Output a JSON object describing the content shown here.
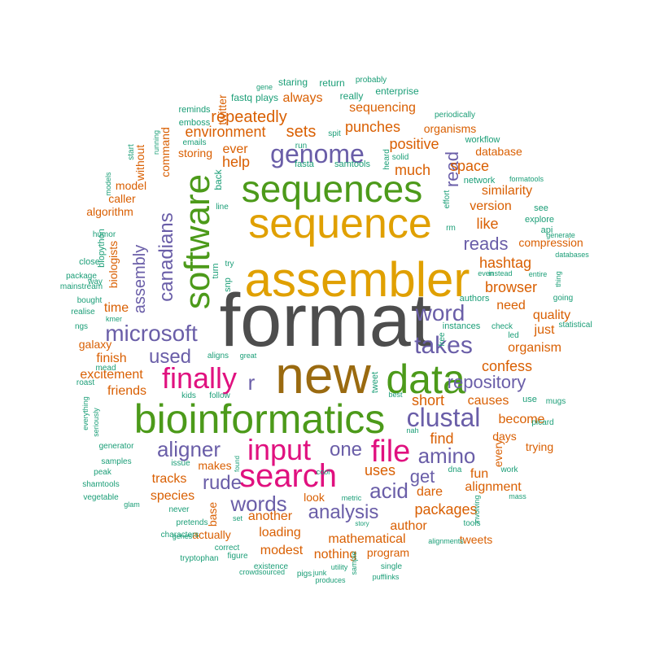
{
  "palette": {
    "dark_gray": "#4d4d4d",
    "gold": "#e0a000",
    "green": "#4c9a1a",
    "brown": "#9a6a10",
    "magenta": "#e0117f",
    "purple": "#6a5ea8",
    "orange": "#d95f02",
    "teal": "#1b9e77"
  },
  "words": [
    {
      "text": "format",
      "color": "dark_gray"
    },
    {
      "text": "new",
      "color": "brown"
    },
    {
      "text": "assembler",
      "color": "gold"
    },
    {
      "text": "sequence",
      "color": "gold"
    },
    {
      "text": "bioinformatics",
      "color": "green"
    },
    {
      "text": "sequences",
      "color": "green"
    },
    {
      "text": "data",
      "color": "green"
    },
    {
      "text": "software",
      "color": "green"
    },
    {
      "text": "search",
      "color": "magenta"
    },
    {
      "text": "input",
      "color": "magenta"
    },
    {
      "text": "file",
      "color": "magenta"
    },
    {
      "text": "finally",
      "color": "magenta"
    },
    {
      "text": "microsoft",
      "color": "purple"
    },
    {
      "text": "genome",
      "color": "purple"
    },
    {
      "text": "clustal",
      "color": "purple"
    },
    {
      "text": "takes",
      "color": "purple"
    },
    {
      "text": "word",
      "color": "purple"
    },
    {
      "text": "aligner",
      "color": "purple"
    },
    {
      "text": "words",
      "color": "purple"
    },
    {
      "text": "acid",
      "color": "purple"
    },
    {
      "text": "amino",
      "color": "purple"
    },
    {
      "text": "one",
      "color": "purple"
    },
    {
      "text": "rude",
      "color": "purple"
    },
    {
      "text": "canadians",
      "color": "purple"
    },
    {
      "text": "assembly",
      "color": "purple"
    },
    {
      "text": "repository",
      "color": "purple"
    },
    {
      "text": "analysis",
      "color": "purple"
    },
    {
      "text": "used",
      "color": "purple"
    },
    {
      "text": "reads",
      "color": "purple"
    },
    {
      "text": "read",
      "color": "purple"
    },
    {
      "text": "r",
      "color": "purple"
    },
    {
      "text": "get",
      "color": "purple"
    },
    {
      "text": "repeatedly",
      "color": "orange"
    },
    {
      "text": "sets",
      "color": "orange"
    },
    {
      "text": "punches",
      "color": "orange"
    },
    {
      "text": "environment",
      "color": "orange"
    },
    {
      "text": "positive",
      "color": "orange"
    },
    {
      "text": "much",
      "color": "orange"
    },
    {
      "text": "help",
      "color": "orange"
    },
    {
      "text": "ever",
      "color": "orange"
    },
    {
      "text": "like",
      "color": "orange"
    },
    {
      "text": "space",
      "color": "orange"
    },
    {
      "text": "similarity",
      "color": "orange"
    },
    {
      "text": "version",
      "color": "orange"
    },
    {
      "text": "hashtag",
      "color": "orange"
    },
    {
      "text": "browser",
      "color": "orange"
    },
    {
      "text": "need",
      "color": "orange"
    },
    {
      "text": "quality",
      "color": "orange"
    },
    {
      "text": "just",
      "color": "orange"
    },
    {
      "text": "organism",
      "color": "orange"
    },
    {
      "text": "confess",
      "color": "orange"
    },
    {
      "text": "excitement",
      "color": "orange"
    },
    {
      "text": "friends",
      "color": "orange"
    },
    {
      "text": "finish",
      "color": "orange"
    },
    {
      "text": "time",
      "color": "orange"
    },
    {
      "text": "short",
      "color": "orange"
    },
    {
      "text": "causes",
      "color": "orange"
    },
    {
      "text": "find",
      "color": "orange"
    },
    {
      "text": "become",
      "color": "orange"
    },
    {
      "text": "days",
      "color": "orange"
    },
    {
      "text": "every",
      "color": "orange"
    },
    {
      "text": "trying",
      "color": "orange"
    },
    {
      "text": "fun",
      "color": "orange"
    },
    {
      "text": "alignment",
      "color": "orange"
    },
    {
      "text": "uses",
      "color": "orange"
    },
    {
      "text": "dare",
      "color": "orange"
    },
    {
      "text": "packages",
      "color": "orange"
    },
    {
      "text": "author",
      "color": "orange"
    },
    {
      "text": "mathematical",
      "color": "orange"
    },
    {
      "text": "loading",
      "color": "orange"
    },
    {
      "text": "another",
      "color": "orange"
    },
    {
      "text": "modest",
      "color": "orange"
    },
    {
      "text": "nothing",
      "color": "orange"
    },
    {
      "text": "program",
      "color": "orange"
    },
    {
      "text": "tracks",
      "color": "orange"
    },
    {
      "text": "species",
      "color": "orange"
    },
    {
      "text": "actually",
      "color": "orange"
    },
    {
      "text": "base",
      "color": "orange"
    },
    {
      "text": "sequencing",
      "color": "orange"
    },
    {
      "text": "always",
      "color": "orange"
    },
    {
      "text": "organisms",
      "color": "orange"
    },
    {
      "text": "biologists",
      "color": "orange"
    },
    {
      "text": "algorithm",
      "color": "orange"
    },
    {
      "text": "model",
      "color": "orange"
    },
    {
      "text": "caller",
      "color": "orange"
    },
    {
      "text": "without",
      "color": "orange"
    },
    {
      "text": "command",
      "color": "orange"
    },
    {
      "text": "storing",
      "color": "orange"
    },
    {
      "text": "twitter",
      "color": "orange"
    },
    {
      "text": "compression",
      "color": "orange"
    },
    {
      "text": "makes",
      "color": "orange"
    },
    {
      "text": "galaxy",
      "color": "orange"
    },
    {
      "text": "database",
      "color": "orange"
    },
    {
      "text": "look",
      "color": "orange"
    },
    {
      "text": "tweets",
      "color": "orange"
    },
    {
      "text": "fastq",
      "color": "teal"
    },
    {
      "text": "plays",
      "color": "teal"
    },
    {
      "text": "staring",
      "color": "teal"
    },
    {
      "text": "return",
      "color": "teal"
    },
    {
      "text": "really",
      "color": "teal"
    },
    {
      "text": "enterprise",
      "color": "teal"
    },
    {
      "text": "probably",
      "color": "teal"
    },
    {
      "text": "gene",
      "color": "teal"
    },
    {
      "text": "reminds",
      "color": "teal"
    },
    {
      "text": "emboss",
      "color": "teal"
    },
    {
      "text": "emails",
      "color": "teal"
    },
    {
      "text": "start",
      "color": "teal"
    },
    {
      "text": "running",
      "color": "teal"
    },
    {
      "text": "spit",
      "color": "teal"
    },
    {
      "text": "run",
      "color": "teal"
    },
    {
      "text": "fasta",
      "color": "teal"
    },
    {
      "text": "samtools",
      "color": "teal"
    },
    {
      "text": "periodically",
      "color": "teal"
    },
    {
      "text": "workflow",
      "color": "teal"
    },
    {
      "text": "solid",
      "color": "teal"
    },
    {
      "text": "heard",
      "color": "teal"
    },
    {
      "text": "network",
      "color": "teal"
    },
    {
      "text": "formatools",
      "color": "teal"
    },
    {
      "text": "effort",
      "color": "teal"
    },
    {
      "text": "see",
      "color": "teal"
    },
    {
      "text": "explore",
      "color": "teal"
    },
    {
      "text": "api",
      "color": "teal"
    },
    {
      "text": "generate",
      "color": "teal"
    },
    {
      "text": "databases",
      "color": "teal"
    },
    {
      "text": "back",
      "color": "teal"
    },
    {
      "text": "line",
      "color": "teal"
    },
    {
      "text": "models",
      "color": "teal"
    },
    {
      "text": "humor",
      "color": "teal"
    },
    {
      "text": "biopython",
      "color": "teal"
    },
    {
      "text": "close",
      "color": "teal"
    },
    {
      "text": "package",
      "color": "teal"
    },
    {
      "text": "mainstream",
      "color": "teal"
    },
    {
      "text": "way",
      "color": "teal"
    },
    {
      "text": "bought",
      "color": "teal"
    },
    {
      "text": "realise",
      "color": "teal"
    },
    {
      "text": "kmer",
      "color": "teal"
    },
    {
      "text": "ngs",
      "color": "teal"
    },
    {
      "text": "try",
      "color": "teal"
    },
    {
      "text": "turn",
      "color": "teal"
    },
    {
      "text": "snp",
      "color": "teal"
    },
    {
      "text": "authors",
      "color": "teal"
    },
    {
      "text": "instances",
      "color": "teal"
    },
    {
      "text": "free",
      "color": "teal"
    },
    {
      "text": "even",
      "color": "teal"
    },
    {
      "text": "instead",
      "color": "teal"
    },
    {
      "text": "entire",
      "color": "teal"
    },
    {
      "text": "led",
      "color": "teal"
    },
    {
      "text": "check",
      "color": "teal"
    },
    {
      "text": "going",
      "color": "teal"
    },
    {
      "text": "thing",
      "color": "teal"
    },
    {
      "text": "statistical",
      "color": "teal"
    },
    {
      "text": "rm",
      "color": "teal"
    },
    {
      "text": "roast",
      "color": "teal"
    },
    {
      "text": "mead",
      "color": "teal"
    },
    {
      "text": "aligns",
      "color": "teal"
    },
    {
      "text": "great",
      "color": "teal"
    },
    {
      "text": "kids",
      "color": "teal"
    },
    {
      "text": "follow",
      "color": "teal"
    },
    {
      "text": "tweet",
      "color": "teal"
    },
    {
      "text": "best",
      "color": "teal"
    },
    {
      "text": "use",
      "color": "teal"
    },
    {
      "text": "mugs",
      "color": "teal"
    },
    {
      "text": "picard",
      "color": "teal"
    },
    {
      "text": "everything",
      "color": "teal"
    },
    {
      "text": "seriously",
      "color": "teal"
    },
    {
      "text": "generator",
      "color": "teal"
    },
    {
      "text": "nah",
      "color": "teal"
    },
    {
      "text": "issue",
      "color": "teal"
    },
    {
      "text": "found",
      "color": "teal"
    },
    {
      "text": "cool",
      "color": "teal"
    },
    {
      "text": "dna",
      "color": "teal"
    },
    {
      "text": "work",
      "color": "teal"
    },
    {
      "text": "samples",
      "color": "teal"
    },
    {
      "text": "peak",
      "color": "teal"
    },
    {
      "text": "shamtools",
      "color": "teal"
    },
    {
      "text": "vegetable",
      "color": "teal"
    },
    {
      "text": "never",
      "color": "teal"
    },
    {
      "text": "glam",
      "color": "teal"
    },
    {
      "text": "metric",
      "color": "teal"
    },
    {
      "text": "mass",
      "color": "teal"
    },
    {
      "text": "pretends",
      "color": "teal"
    },
    {
      "text": "characters",
      "color": "teal"
    },
    {
      "text": "set",
      "color": "teal"
    },
    {
      "text": "tools",
      "color": "teal"
    },
    {
      "text": "involving",
      "color": "teal"
    },
    {
      "text": "genes",
      "color": "teal"
    },
    {
      "text": "correct",
      "color": "teal"
    },
    {
      "text": "story",
      "color": "teal"
    },
    {
      "text": "alignments",
      "color": "teal"
    },
    {
      "text": "tryptophan",
      "color": "teal"
    },
    {
      "text": "figure",
      "color": "teal"
    },
    {
      "text": "existence",
      "color": "teal"
    },
    {
      "text": "crowdsourced",
      "color": "teal"
    },
    {
      "text": "pigs",
      "color": "teal"
    },
    {
      "text": "junk",
      "color": "teal"
    },
    {
      "text": "utility",
      "color": "teal"
    },
    {
      "text": "sample",
      "color": "teal"
    },
    {
      "text": "single",
      "color": "teal"
    },
    {
      "text": "produces",
      "color": "teal"
    },
    {
      "text": "pufflinks",
      "color": "teal"
    }
  ]
}
